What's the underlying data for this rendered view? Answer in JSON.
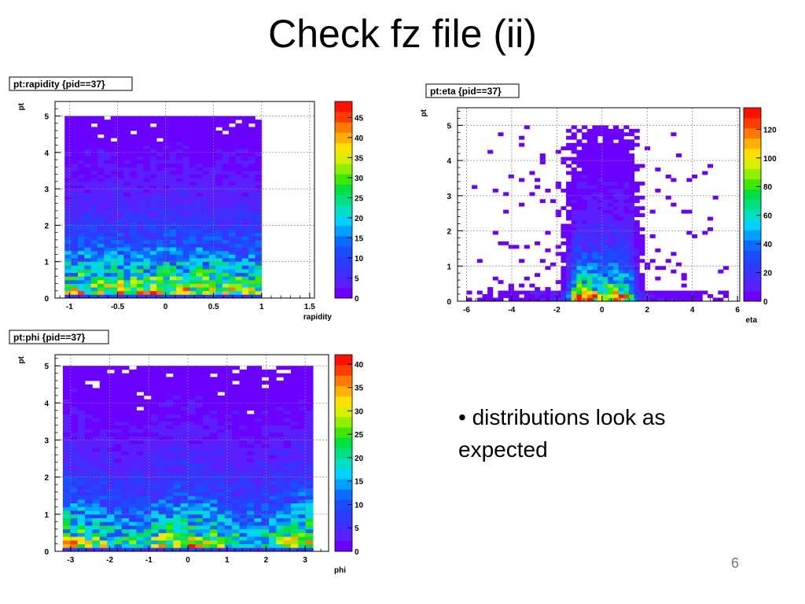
{
  "slide": {
    "title": "Check fz file (ii)",
    "bullet": "• distributions look as expected",
    "page_number": "6"
  },
  "colors": {
    "palette": [
      "#6a00ff",
      "#5a1fff",
      "#3f2fff",
      "#2b3cff",
      "#1b4dff",
      "#0a6cff",
      "#00a0ff",
      "#00d2ff",
      "#00e0c0",
      "#00e080",
      "#00e040",
      "#40e800",
      "#90f000",
      "#d8f000",
      "#ffe000",
      "#ffb000",
      "#ff7a00",
      "#ff3c00",
      "#ff1000"
    ]
  },
  "chart_data": [
    {
      "type": "heatmap",
      "title": "pt:rapidity {pid==37}",
      "xlabel": "rapidity",
      "ylabel": "pt",
      "xlim": [
        -1.15,
        1.55
      ],
      "ylim": [
        0,
        5.4
      ],
      "xticks": [
        -1,
        -0.5,
        0,
        0.5,
        1,
        1.5
      ],
      "xtick_labels": [
        "-1",
        "-0.5",
        "0",
        "0.5",
        "1",
        "1.5"
      ],
      "yticks": [
        0,
        1,
        2,
        3,
        4,
        5
      ],
      "ytick_labels": [
        "0",
        "1",
        "2",
        "3",
        "4",
        "5"
      ],
      "zmax": 49,
      "zticks": [
        0,
        5,
        10,
        15,
        20,
        25,
        30,
        35,
        40,
        45
      ],
      "ztick_labels": [
        "0",
        "5",
        "10",
        "15",
        "20",
        "25",
        "30",
        "35",
        "40",
        "45"
      ],
      "xbins": [
        -1.05,
        1.0,
        30
      ],
      "ybins": [
        0.0,
        5.0,
        50
      ],
      "profile": "rapidity",
      "seed": 11,
      "grid": true
    },
    {
      "type": "heatmap",
      "title": "pt:eta {pid==37}",
      "xlabel": "eta",
      "ylabel": "pt",
      "xlim": [
        -6.4,
        6.1
      ],
      "ylim": [
        0,
        5.5
      ],
      "xticks": [
        -6,
        -4,
        -2,
        0,
        2,
        4,
        6
      ],
      "xtick_labels": [
        "-6",
        "-4",
        "-2",
        "0",
        "2",
        "4",
        "6"
      ],
      "yticks": [
        0,
        1,
        2,
        3,
        4,
        5
      ],
      "ytick_labels": [
        "0",
        "1",
        "2",
        "3",
        "4",
        "5"
      ],
      "zmax": 135,
      "zticks": [
        0,
        20,
        40,
        60,
        80,
        100,
        120
      ],
      "ztick_labels": [
        "0",
        "20",
        "40",
        "60",
        "80",
        "100",
        "120"
      ],
      "xbins": [
        -6.0,
        5.6,
        50
      ],
      "ybins": [
        0.0,
        5.0,
        50
      ],
      "profile": "eta",
      "seed": 23,
      "grid": true
    },
    {
      "type": "heatmap",
      "title": "pt:phi {pid==37}",
      "xlabel": "phi",
      "ylabel": "pt",
      "xlim": [
        -3.4,
        3.6
      ],
      "ylim": [
        0,
        5.3
      ],
      "xticks": [
        -3,
        -2,
        -1,
        0,
        1,
        2,
        3
      ],
      "xtick_labels": [
        "-3",
        "-2",
        "-1",
        "0",
        "1",
        "2",
        "3"
      ],
      "yticks": [
        0,
        1,
        2,
        3,
        4,
        5
      ],
      "ytick_labels": [
        "0",
        "1",
        "2",
        "3",
        "4",
        "5"
      ],
      "zmax": 42,
      "zticks": [
        0,
        5,
        10,
        15,
        20,
        25,
        30,
        35,
        40
      ],
      "ztick_labels": [
        "0",
        "5",
        "10",
        "15",
        "20",
        "25",
        "30",
        "35",
        "40"
      ],
      "xbins": [
        -3.2,
        3.2,
        34
      ],
      "ybins": [
        0.0,
        5.0,
        50
      ],
      "profile": "phi",
      "seed": 37,
      "grid": true
    }
  ]
}
